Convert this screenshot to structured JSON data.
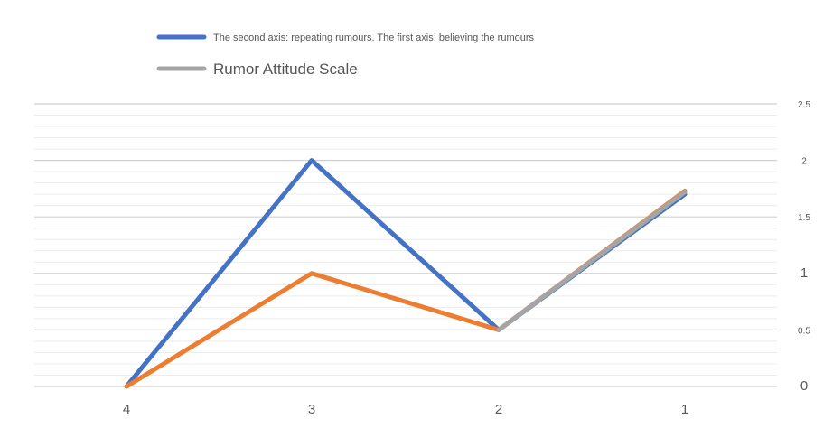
{
  "chart_data": {
    "type": "line",
    "categories": [
      "4",
      "3",
      "2",
      "1"
    ],
    "series": [
      {
        "name": "The second axis: repeating rumours. The first axis: believing the rumours",
        "color": "#4472c4",
        "values": [
          0,
          2,
          0.5,
          1.7
        ]
      },
      {
        "name": "",
        "color": "#ed7d31",
        "values": [
          0,
          1,
          0.5,
          1.73
        ]
      },
      {
        "name": "Rumor Attitude Scale",
        "color": "#a5a5a5",
        "values": [
          null,
          null,
          0.5,
          1.72
        ]
      }
    ],
    "y_ticks": [
      "0",
      "0.5",
      "1",
      "1.5",
      "2",
      "2.5"
    ],
    "y_tick_values": [
      0,
      0.5,
      1,
      1.5,
      2,
      2.5
    ],
    "ylim": [
      0,
      2.5
    ],
    "y_axis_position": "right",
    "grid": true,
    "legend": "top-center",
    "gridline_color": "#d9d9d9"
  }
}
